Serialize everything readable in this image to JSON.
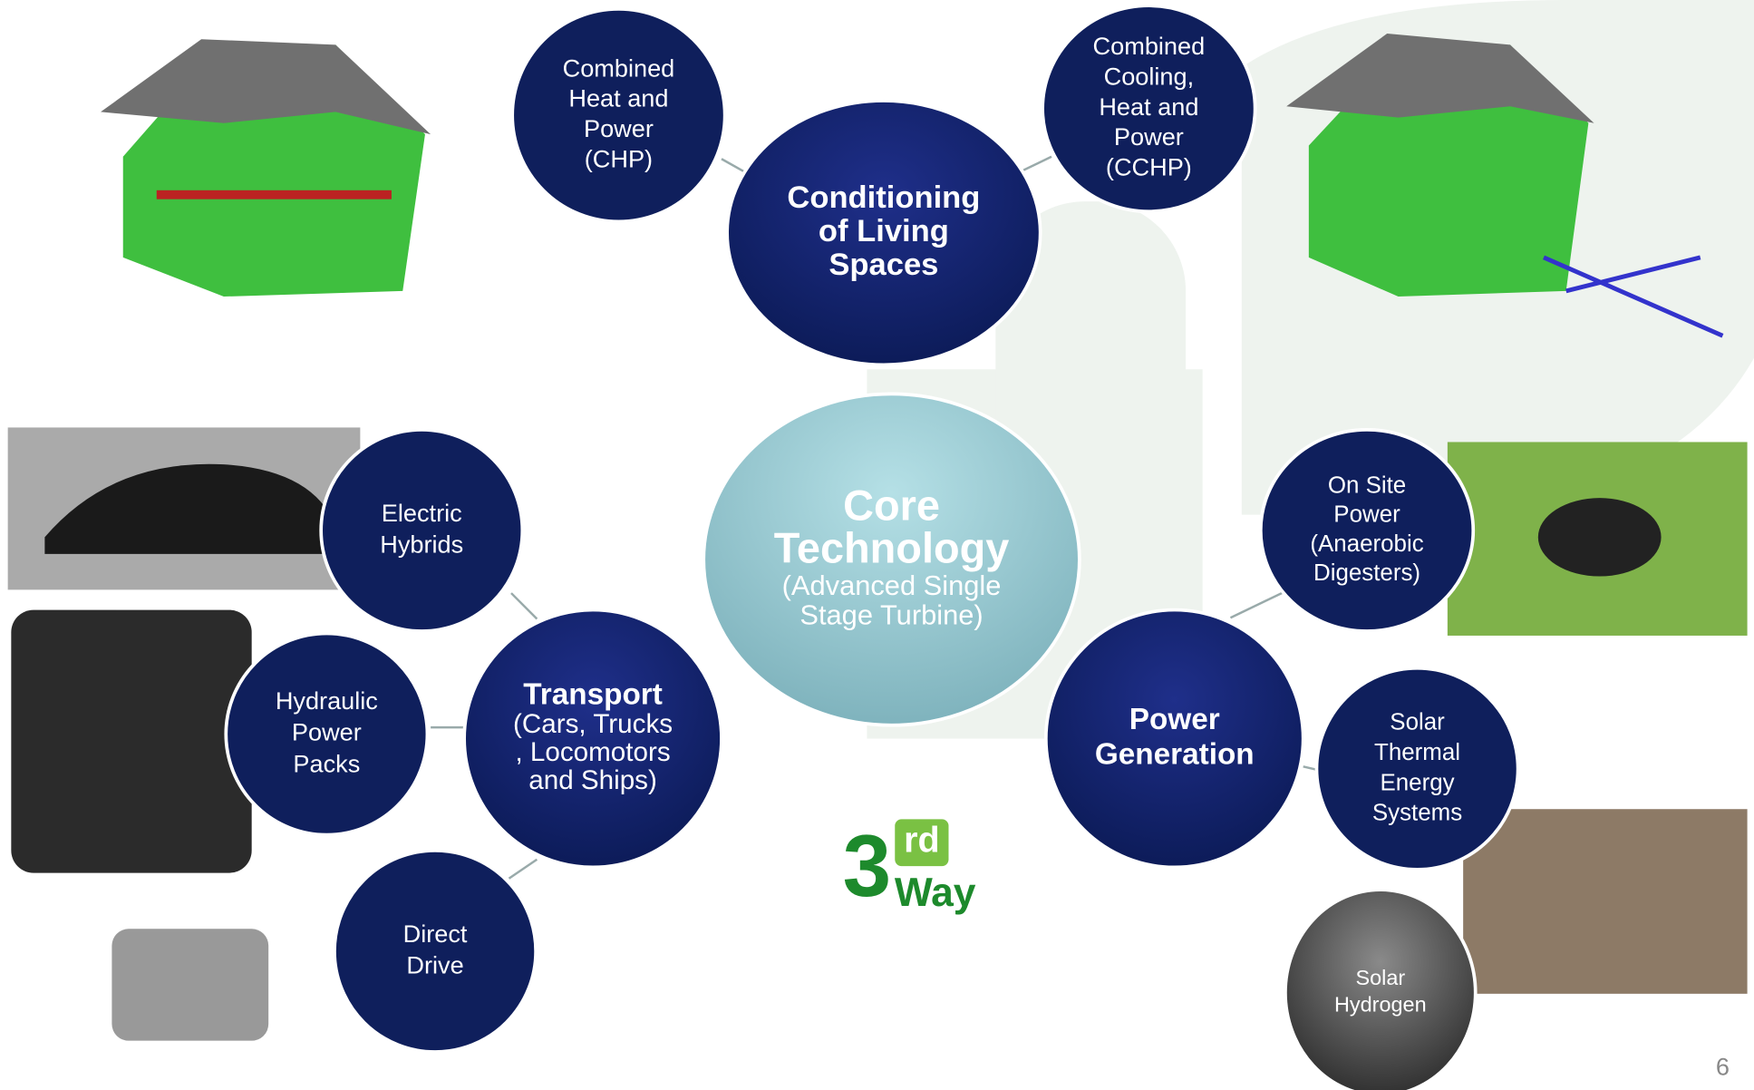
{
  "nodes": [
    {
      "lines": [
        "Core",
        "Technology"
      ],
      "sub": [
        "(Advanced Single",
        "Stage Turbine)"
      ]
    },
    {
      "lines": [
        "Conditioning",
        "of Living",
        "Spaces"
      ]
    },
    {
      "lines": [
        "Combined",
        "Heat and",
        "Power",
        "(CHP)"
      ]
    },
    {
      "lines": [
        "Combined",
        "Cooling,",
        "Heat and",
        "Power",
        "(CCHP)"
      ]
    },
    {
      "lines": [
        "Transport"
      ],
      "sub": [
        "(Cars, Trucks",
        ", Locomotors",
        "and Ships)"
      ]
    },
    {
      "lines": [
        "Electric",
        "Hybrids"
      ]
    },
    {
      "lines": [
        "Hydraulic",
        "Power",
        "Packs"
      ]
    },
    {
      "lines": [
        "Direct",
        "Drive"
      ]
    },
    {
      "lines": [
        "Power",
        "Generation"
      ]
    },
    {
      "lines": [
        "On Site",
        "Power",
        "(Anaerobic",
        "Digesters)"
      ]
    },
    {
      "lines": [
        "Solar",
        "Thermal",
        "Energy",
        "Systems"
      ]
    },
    {
      "lines": [
        "Solar",
        "Hydrogen"
      ]
    }
  ],
  "logo": {
    "number": "3",
    "suffix": "rd",
    "word": "Way"
  },
  "page_number": "6"
}
